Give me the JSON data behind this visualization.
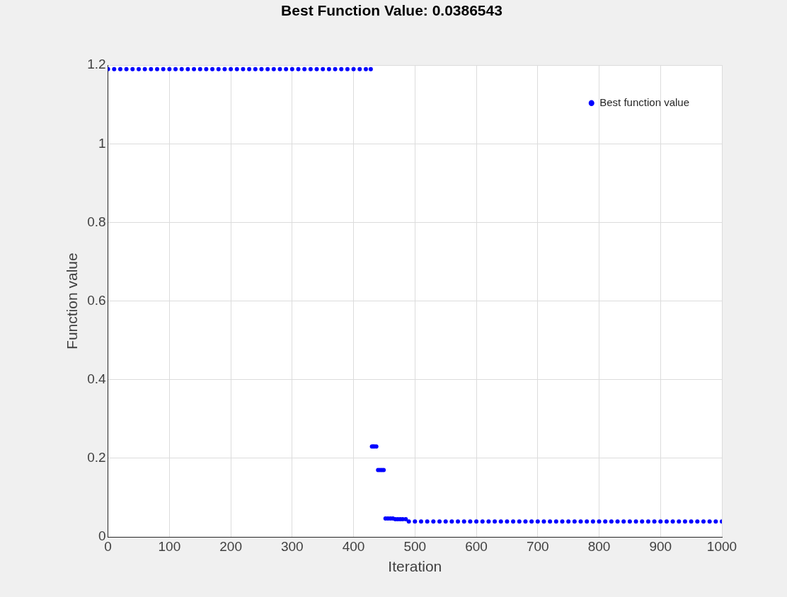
{
  "chart_data": {
    "type": "scatter",
    "title": "Best Function Value: 0.0386543",
    "xlabel": "Iteration",
    "ylabel": "Function value",
    "xlim": [
      0,
      1000
    ],
    "xticks": [
      0,
      100,
      200,
      300,
      400,
      500,
      600,
      700,
      800,
      900,
      1000
    ],
    "ylim": [
      0,
      1.2
    ],
    "yticks": [
      0,
      0.2,
      0.4,
      0.6,
      0.8,
      1,
      1.2
    ],
    "grid": true,
    "legend": "top right",
    "marker": "circle",
    "series": [
      {
        "name": "Best function value",
        "color": "#0000ff",
        "x": [
          0,
          10,
          20,
          30,
          40,
          50,
          60,
          70,
          80,
          90,
          100,
          110,
          120,
          130,
          140,
          150,
          160,
          170,
          180,
          190,
          200,
          210,
          220,
          230,
          240,
          250,
          260,
          270,
          280,
          290,
          300,
          310,
          320,
          330,
          340,
          350,
          360,
          370,
          380,
          390,
          400,
          410,
          420,
          428,
          430,
          432,
          434,
          437,
          440,
          443,
          446,
          449,
          452,
          456,
          460,
          464,
          468,
          472,
          476,
          480,
          485,
          490,
          500,
          510,
          520,
          530,
          540,
          550,
          560,
          570,
          580,
          590,
          600,
          610,
          620,
          630,
          640,
          650,
          660,
          670,
          680,
          690,
          700,
          710,
          720,
          730,
          740,
          750,
          760,
          770,
          780,
          790,
          800,
          810,
          820,
          830,
          840,
          850,
          860,
          870,
          880,
          890,
          900,
          910,
          920,
          930,
          940,
          950,
          960,
          970,
          980,
          990,
          1000
        ],
        "values": [
          1.19,
          1.19,
          1.19,
          1.19,
          1.19,
          1.19,
          1.19,
          1.19,
          1.19,
          1.19,
          1.19,
          1.19,
          1.19,
          1.19,
          1.19,
          1.19,
          1.19,
          1.19,
          1.19,
          1.19,
          1.19,
          1.19,
          1.19,
          1.19,
          1.19,
          1.19,
          1.19,
          1.19,
          1.19,
          1.19,
          1.19,
          1.19,
          1.19,
          1.19,
          1.19,
          1.19,
          1.19,
          1.19,
          1.19,
          1.19,
          1.19,
          1.19,
          1.19,
          1.19,
          0.23,
          0.23,
          0.23,
          0.23,
          0.17,
          0.17,
          0.17,
          0.17,
          0.047,
          0.047,
          0.047,
          0.047,
          0.045,
          0.045,
          0.045,
          0.045,
          0.045,
          0.039,
          0.039,
          0.039,
          0.039,
          0.039,
          0.039,
          0.039,
          0.039,
          0.039,
          0.039,
          0.039,
          0.039,
          0.039,
          0.039,
          0.039,
          0.039,
          0.039,
          0.039,
          0.039,
          0.039,
          0.039,
          0.039,
          0.039,
          0.039,
          0.039,
          0.039,
          0.039,
          0.039,
          0.039,
          0.039,
          0.039,
          0.039,
          0.039,
          0.039,
          0.039,
          0.039,
          0.039,
          0.039,
          0.039,
          0.039,
          0.039,
          0.039,
          0.039,
          0.039,
          0.039,
          0.039,
          0.039,
          0.039,
          0.039,
          0.039,
          0.039,
          0.039
        ]
      }
    ]
  }
}
